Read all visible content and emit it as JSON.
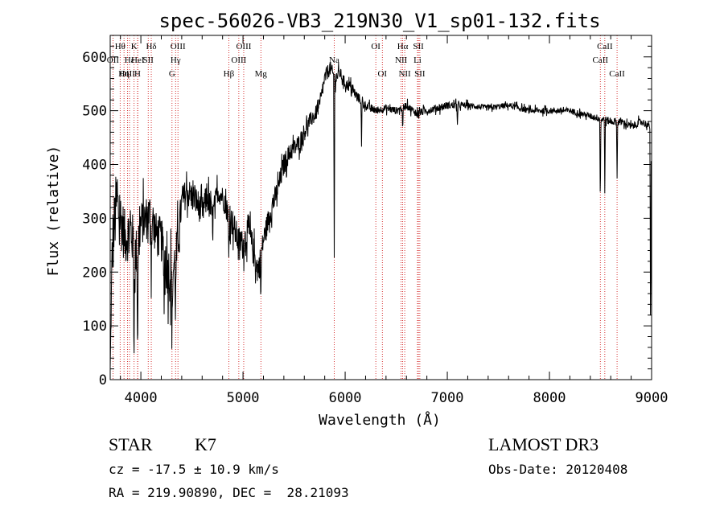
{
  "chart_data": {
    "type": "line",
    "title": "spec-56026-VB3_219N30_V1_sp01-132.fits",
    "xlabel": "Wavelength (Å)",
    "ylabel": "Flux (relative)",
    "xlim": [
      3700,
      9000
    ],
    "ylim": [
      0,
      640
    ],
    "x_ticks": [
      4000,
      5000,
      6000,
      7000,
      8000,
      9000
    ],
    "x_tick_labels": [
      "4000",
      "5000",
      "6000",
      "7000",
      "8000",
      "9000"
    ],
    "y_ticks": [
      0,
      100,
      200,
      300,
      400,
      500,
      600
    ],
    "y_tick_labels": [
      "0",
      "100",
      "200",
      "300",
      "400",
      "500",
      "600"
    ],
    "spectrum_anchors": {
      "x": [
        3700,
        3720,
        3760,
        3800,
        3850,
        3900,
        3950,
        4000,
        4050,
        4100,
        4150,
        4200,
        4250,
        4300,
        4350,
        4400,
        4450,
        4500,
        4550,
        4600,
        4650,
        4700,
        4750,
        4800,
        4850,
        4900,
        4950,
        5000,
        5050,
        5100,
        5150,
        5200,
        5250,
        5300,
        5350,
        5400,
        5450,
        5500,
        5550,
        5600,
        5650,
        5700,
        5750,
        5800,
        5850,
        5900,
        5950,
        6000,
        6050,
        6100,
        6150,
        6200,
        6300,
        6400,
        6500,
        6600,
        6700,
        6800,
        7000,
        7200,
        7400,
        7600,
        7800,
        8000,
        8200,
        8400,
        8500,
        8600,
        8700,
        8800,
        8900,
        8990
      ],
      "y": [
        20,
        240,
        330,
        300,
        260,
        280,
        230,
        290,
        300,
        310,
        270,
        260,
        210,
        190,
        230,
        330,
        350,
        340,
        330,
        310,
        340,
        300,
        350,
        340,
        310,
        290,
        260,
        250,
        280,
        240,
        200,
        260,
        300,
        330,
        360,
        400,
        420,
        430,
        440,
        460,
        480,
        490,
        510,
        560,
        580,
        560,
        570,
        550,
        545,
        530,
        520,
        510,
        500,
        505,
        500,
        510,
        495,
        500,
        510,
        510,
        505,
        510,
        500,
        500,
        500,
        490,
        485,
        480,
        480,
        470,
        480,
        470
      ],
      "noise_amplitude": [
        5,
        100,
        90,
        80,
        70,
        70,
        70,
        60,
        60,
        60,
        60,
        60,
        70,
        80,
        70,
        40,
        40,
        40,
        40,
        40,
        40,
        40,
        30,
        30,
        30,
        40,
        40,
        40,
        40,
        40,
        40,
        30,
        30,
        30,
        30,
        30,
        25,
        25,
        25,
        25,
        20,
        20,
        20,
        20,
        20,
        20,
        15,
        15,
        15,
        15,
        12,
        12,
        10,
        10,
        10,
        10,
        10,
        10,
        10,
        8,
        8,
        8,
        8,
        8,
        8,
        8,
        10,
        10,
        10,
        10,
        10,
        10
      ]
    },
    "absorption_features": [
      {
        "x": 3933,
        "depth": 200
      },
      {
        "x": 3968,
        "depth": 220
      },
      {
        "x": 4102,
        "depth": 120
      },
      {
        "x": 4226,
        "depth": 100
      },
      {
        "x": 4305,
        "depth": 130
      },
      {
        "x": 4340,
        "depth": 110
      },
      {
        "x": 4861,
        "depth": 80
      },
      {
        "x": 5175,
        "depth": 90
      },
      {
        "x": 5893,
        "depth": 330
      },
      {
        "x": 6160,
        "depth": 90
      },
      {
        "x": 6563,
        "depth": 50
      },
      {
        "x": 7100,
        "depth": 40
      },
      {
        "x": 8498,
        "depth": 160
      },
      {
        "x": 8542,
        "depth": 130
      },
      {
        "x": 8662,
        "depth": 110
      },
      {
        "x": 8990,
        "depth": 420
      }
    ],
    "spectral_lines": [
      {
        "label": "Hθ",
        "wavelength": 3797,
        "row": 0
      },
      {
        "label": "K",
        "wavelength": 3934,
        "row": 0
      },
      {
        "label": "Hδ",
        "wavelength": 4102,
        "row": 0
      },
      {
        "label": "OII",
        "wavelength": 3727,
        "row": 1
      },
      {
        "label": "Hε",
        "wavelength": 3889,
        "row": 1
      },
      {
        "label": "HeI",
        "wavelength": 3970,
        "row": 1
      },
      {
        "label": "SII",
        "wavelength": 4072,
        "row": 1
      },
      {
        "label": "OIII",
        "wavelength": 3869,
        "row": 2
      },
      {
        "label": "Hη",
        "wavelength": 3835,
        "row": 2
      },
      {
        "label": "H",
        "wavelength": 3968,
        "row": 2
      },
      {
        "label": "OIII",
        "wavelength": 4363,
        "row": 0
      },
      {
        "label": "Hγ",
        "wavelength": 4340,
        "row": 1
      },
      {
        "label": "G",
        "wavelength": 4305,
        "row": 2
      },
      {
        "label": "OIII",
        "wavelength": 5007,
        "row": 0
      },
      {
        "label": "OIII",
        "wavelength": 4959,
        "row": 1
      },
      {
        "label": "Hβ",
        "wavelength": 4861,
        "row": 2
      },
      {
        "label": "Mg",
        "wavelength": 5175,
        "row": 2
      },
      {
        "label": "Na",
        "wavelength": 5893,
        "row": 1
      },
      {
        "label": "OI",
        "wavelength": 6300,
        "row": 0
      },
      {
        "label": "OI",
        "wavelength": 6364,
        "row": 2
      },
      {
        "label": "Hα",
        "wavelength": 6563,
        "row": 0
      },
      {
        "label": "SII",
        "wavelength": 6717,
        "row": 0
      },
      {
        "label": "NII",
        "wavelength": 6548,
        "row": 1
      },
      {
        "label": "Li",
        "wavelength": 6708,
        "row": 1
      },
      {
        "label": "NII",
        "wavelength": 6583,
        "row": 2
      },
      {
        "label": "SII",
        "wavelength": 6731,
        "row": 2
      },
      {
        "label": "CaII",
        "wavelength": 8542,
        "row": 0
      },
      {
        "label": "CaII",
        "wavelength": 8498,
        "row": 1
      },
      {
        "label": "CaII",
        "wavelength": 8662,
        "row": 2
      }
    ]
  },
  "info": {
    "class": "STAR",
    "subclass": "K7",
    "survey": "LAMOST DR3",
    "cz": "cz = -17.5 ± 10.9 km/s",
    "obs_date": "Obs-Date: 20120408",
    "coords": "RA = 219.90890, DEC =  28.21093"
  },
  "colors": {
    "spectrum": "#000000",
    "line_markers": "#cc0000",
    "axes": "#000000"
  }
}
